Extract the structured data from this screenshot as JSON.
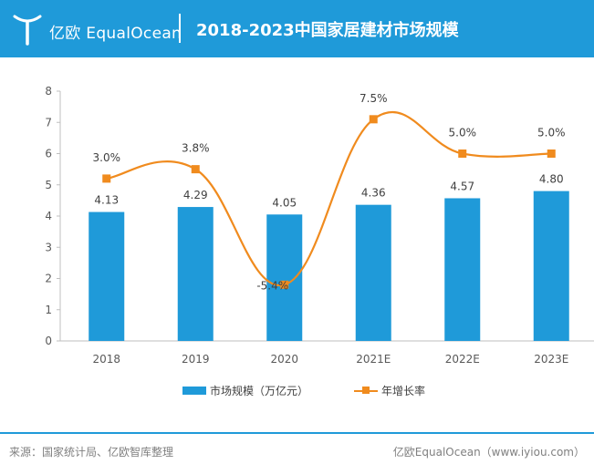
{
  "header": {
    "brand": "亿欧 EqualOcean",
    "title": "2018-2023中国家居建材市场规模"
  },
  "chart_data": {
    "type": "bar",
    "categories": [
      "2018",
      "2019",
      "2020",
      "2021E",
      "2022E",
      "2023E"
    ],
    "series": [
      {
        "name": "市场规模（万亿元）",
        "type": "bar",
        "values": [
          4.13,
          4.29,
          4.05,
          4.36,
          4.57,
          4.8
        ],
        "labels": [
          "4.13",
          "4.29",
          "4.05",
          "4.36",
          "4.57",
          "4.80"
        ]
      },
      {
        "name": "年增长率",
        "type": "line",
        "values": [
          3.0,
          3.8,
          -5.4,
          7.5,
          5.0,
          5.0
        ],
        "labels": [
          "3.0%",
          "3.8%",
          "-5.4%",
          "7.5%",
          "5.0%",
          "5.0%"
        ],
        "plotted_on_left_axis_as": [
          5.2,
          5.5,
          1.8,
          7.1,
          6.0,
          6.0
        ]
      }
    ],
    "ylim": [
      0,
      8
    ],
    "yticks": [
      "0",
      "1",
      "2",
      "3",
      "4",
      "5",
      "6",
      "7",
      "8"
    ],
    "grid": false,
    "legend_position": "bottom",
    "colors": {
      "bar": "#1f9ad9",
      "line": "#f08b1e"
    }
  },
  "footer": {
    "source": "来源：国家统计局、亿欧智库整理",
    "credit": "亿欧EqualOcean（www.iyiou.com）"
  },
  "colors": {
    "header_bg": "#1f9ad9",
    "accent": "#f08b1e"
  }
}
